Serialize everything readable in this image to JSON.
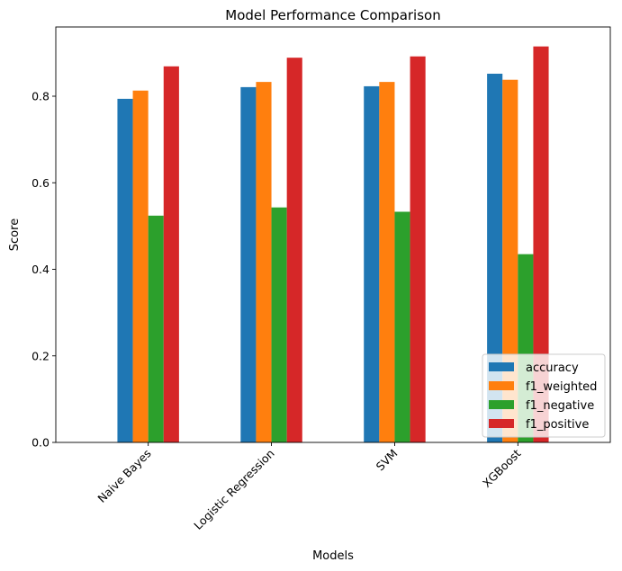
{
  "chart_data": {
    "type": "bar",
    "title": "Model Performance Comparison",
    "xlabel": "Models",
    "ylabel": "Score",
    "categories": [
      "Naive Bayes",
      "Logistic Regression",
      "SVM",
      "XGBoost"
    ],
    "series": [
      {
        "name": "accuracy",
        "color": "#1f77b4",
        "values": [
          0.794,
          0.821,
          0.823,
          0.852
        ]
      },
      {
        "name": "f1_weighted",
        "color": "#ff7f0e",
        "values": [
          0.813,
          0.833,
          0.833,
          0.838
        ]
      },
      {
        "name": "f1_negative",
        "color": "#2ca02c",
        "values": [
          0.524,
          0.543,
          0.533,
          0.435
        ]
      },
      {
        "name": "f1_positive",
        "color": "#d62728",
        "values": [
          0.869,
          0.889,
          0.892,
          0.915
        ]
      }
    ],
    "yticks": [
      "0.0",
      "0.2",
      "0.4",
      "0.6",
      "0.8"
    ],
    "ylim": [
      0,
      0.96
    ],
    "grid": false,
    "legend_position": "lower-right",
    "xtick_rotation": 45
  }
}
